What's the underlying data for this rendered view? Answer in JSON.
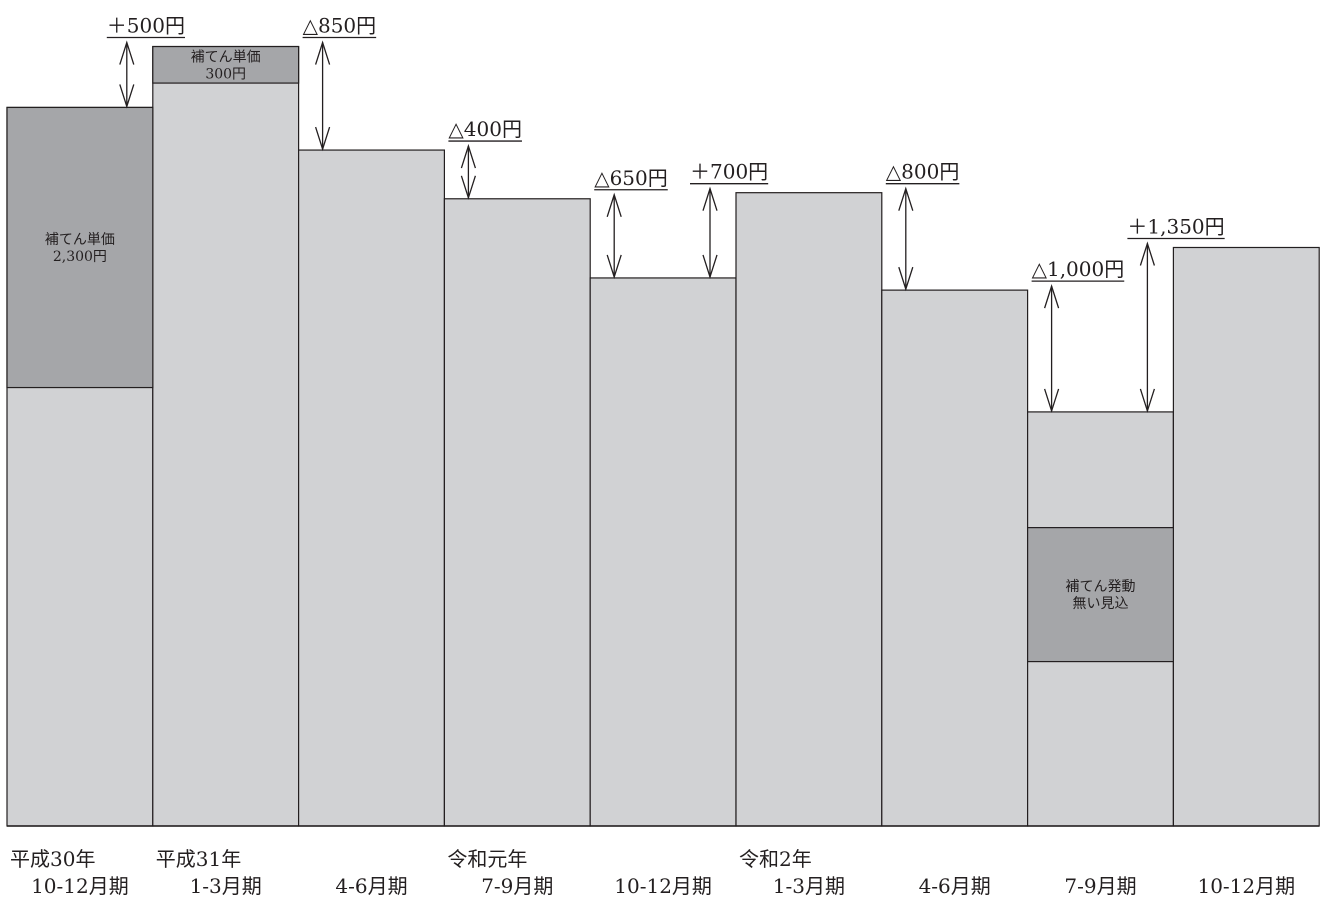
{
  "chart_data": {
    "type": "bar",
    "title": "",
    "xlabel": "",
    "ylabel": "",
    "grid": false,
    "legend": "none",
    "colors": {
      "bar": "#d1d2d4",
      "subsidy": "#a5a6a9",
      "ink": "#231f20"
    },
    "categories": [
      {
        "year": "平成30年",
        "period": "10-12月期"
      },
      {
        "year": "平成31年",
        "period": "1-3月期"
      },
      {
        "year": "",
        "period": "4-6月期"
      },
      {
        "year": "令和元年",
        "period": "7-9月期"
      },
      {
        "year": "",
        "period": "10-12月期"
      },
      {
        "year": "令和2年",
        "period": "1-3月期"
      },
      {
        "year": "",
        "period": "4-6月期"
      },
      {
        "year": "",
        "period": "7-9月期"
      },
      {
        "year": "",
        "period": "10-12月期"
      }
    ],
    "values": [
      10300,
      10800,
      9950,
      9550,
      8900,
      9600,
      8800,
      7800,
      9150
    ],
    "ylim": [
      4400,
      11100
    ],
    "subsidy_boxes": [
      {
        "index": 0,
        "from": 8000,
        "to": 10300,
        "lines": [
          "補てん単価",
          "2,300円"
        ]
      },
      {
        "index": 1,
        "from": 10500,
        "to": 10800,
        "lines": [
          "補てん単価",
          "300円"
        ]
      },
      {
        "index": 7,
        "from": 5750,
        "to": 6850,
        "lines": [
          "補てん発動",
          "無い見込"
        ]
      }
    ],
    "changes": [
      {
        "from": 0,
        "to": 1,
        "label": "＋500円"
      },
      {
        "from": 1,
        "to": 2,
        "label": "△850円"
      },
      {
        "from": 2,
        "to": 3,
        "label": "△400円"
      },
      {
        "from": 3,
        "to": 4,
        "label": "△650円"
      },
      {
        "from": 4,
        "to": 5,
        "label": "＋700円"
      },
      {
        "from": 5,
        "to": 6,
        "label": "△800円"
      },
      {
        "from": 6,
        "to": 7,
        "label": "△1,000円"
      },
      {
        "from": 7,
        "to": 8,
        "label": "＋1,350円"
      }
    ]
  }
}
